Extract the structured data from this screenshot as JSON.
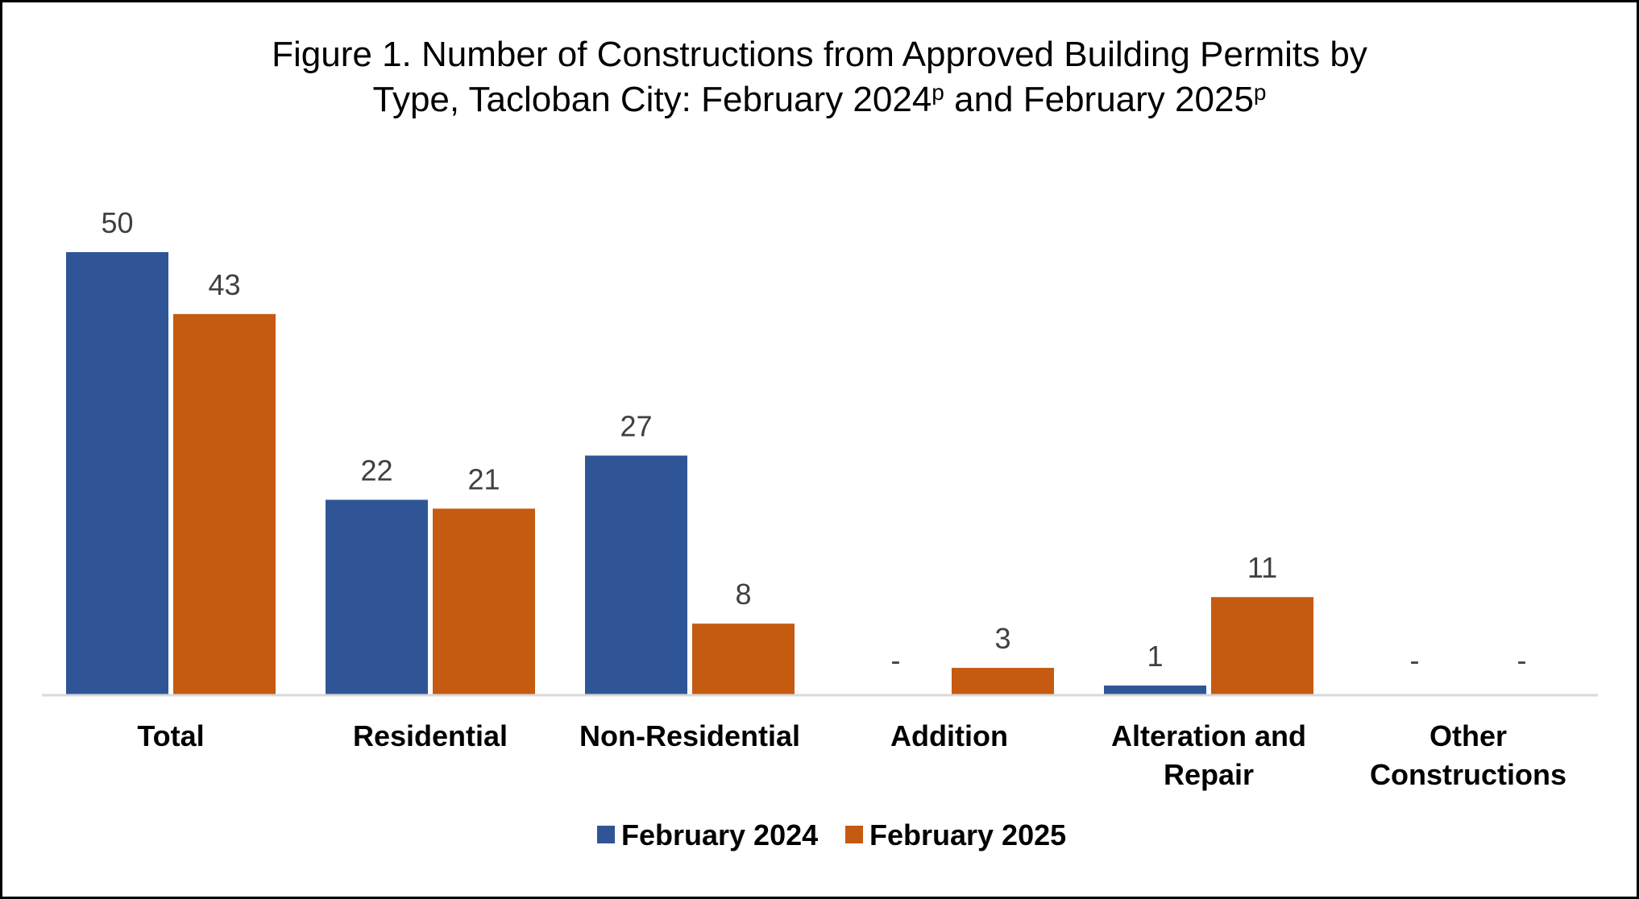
{
  "title": {
    "line1": "Figure 1. Number of Constructions from Approved Building Permits by",
    "line2_a": "Type, Tacloban City: February 2024",
    "sup1": "p",
    "line2_b": " and February 2025",
    "sup2": "p"
  },
  "chart_data": {
    "type": "bar",
    "title": "Figure 1. Number of Constructions from Approved Building Permits by Type, Tacloban City: February 2024p and February 2025p",
    "categories": [
      [
        "Total"
      ],
      [
        "Residential"
      ],
      [
        "Non-Residential"
      ],
      [
        "Addition"
      ],
      [
        "Alteration and",
        "Repair"
      ],
      [
        "Other",
        "Constructions"
      ]
    ],
    "series": [
      {
        "name": "February 2024",
        "color": "#2F5597",
        "values": [
          50,
          22,
          27,
          0,
          1,
          0
        ],
        "labels": [
          "50",
          "22",
          "27",
          "-",
          "1",
          "-"
        ]
      },
      {
        "name": "February 2025",
        "color": "#C55A11",
        "values": [
          43,
          21,
          8,
          3,
          11,
          0
        ],
        "labels": [
          "43",
          "21",
          "8",
          "3",
          "11",
          "-"
        ]
      }
    ],
    "ylim": [
      0,
      50
    ],
    "grid": false,
    "legend_position": "bottom",
    "axis_color": "#D9D9D9"
  }
}
